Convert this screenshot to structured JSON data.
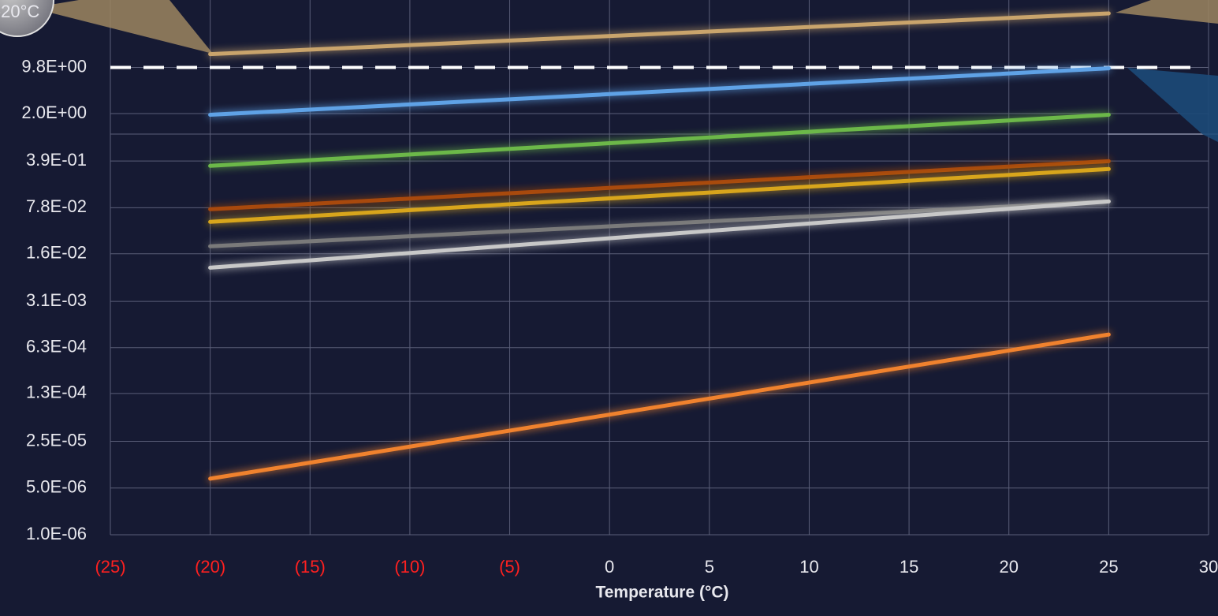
{
  "chart_data": {
    "type": "line",
    "x_label": "Temperature (°C)",
    "annotation": "-20°C",
    "log_y": true,
    "grid": true,
    "xlim": [
      -25,
      30
    ],
    "xticks": [
      {
        "value": -25,
        "label": "(25)"
      },
      {
        "value": -20,
        "label": "(20)"
      },
      {
        "value": -15,
        "label": "(15)"
      },
      {
        "value": -10,
        "label": "(10)"
      },
      {
        "value": -5,
        "label": "(5)"
      },
      0,
      5,
      10,
      15,
      20,
      25,
      30
    ],
    "negative_tick_color": "#ff2020",
    "ylim": [
      1e-06,
      100
    ],
    "yticks": [
      {
        "value": 1e-06,
        "label": "1.0E-06"
      },
      {
        "value": 5e-06,
        "label": "5.0E-06"
      },
      {
        "value": 2.5e-05,
        "label": "2.5E-05"
      },
      {
        "value": 0.00013,
        "label": "1.3E-04"
      },
      {
        "value": 0.00063,
        "label": "6.3E-04"
      },
      {
        "value": 0.0031,
        "label": "3.1E-03"
      },
      {
        "value": 0.016,
        "label": "1.6E-02"
      },
      {
        "value": 0.078,
        "label": "7.8E-02"
      },
      {
        "value": 0.39,
        "label": "3.9E-01"
      },
      {
        "value": 2.0,
        "label": "2.0E+00"
      },
      {
        "value": 9.8,
        "label": "9.8E+00"
      }
    ],
    "threshold": {
      "value": 9.8,
      "color": "#ffffff"
    },
    "x": [
      -20,
      25
    ],
    "series": [
      {
        "color": "#c9a46c",
        "values": [
          15.5,
          63
        ]
      },
      {
        "color": "#5ea2e6",
        "values": [
          1.92,
          9.5
        ]
      },
      {
        "color": "#6cb84a",
        "values": [
          0.33,
          1.92
        ]
      },
      {
        "color": "#a8480e",
        "values": [
          0.074,
          0.387
        ]
      },
      {
        "color": "#d8a51c",
        "values": [
          0.048,
          0.296
        ]
      },
      {
        "color": "#7a7a7a",
        "values": [
          0.0207,
          0.097
        ]
      },
      {
        "color": "#c8c8c8",
        "values": [
          0.0099,
          0.097
        ]
      },
      {
        "color": "#f0822e",
        "values": [
          6.9e-06,
          0.00099
        ]
      }
    ]
  }
}
